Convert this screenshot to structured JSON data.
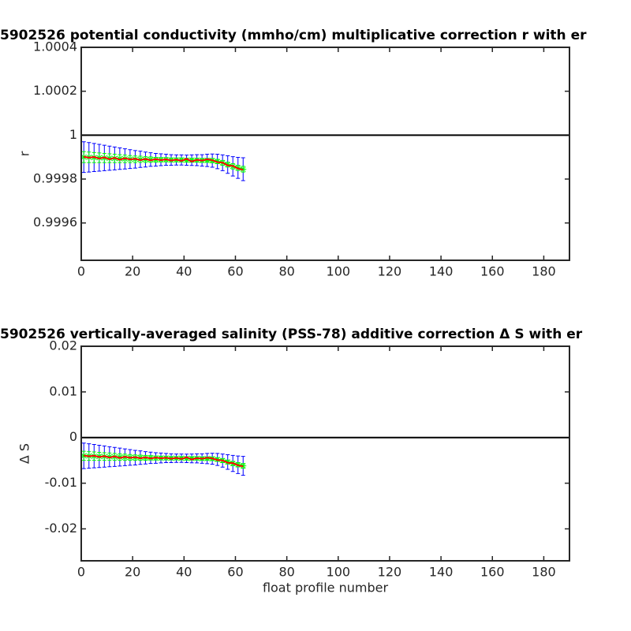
{
  "chart_data": [
    {
      "type": "errorbar",
      "title": "5902526 potential conductivity (mmho/cm) multiplicative correction r with er",
      "y_label": "r",
      "x": [
        1,
        3,
        5,
        7,
        9,
        11,
        13,
        15,
        17,
        19,
        21,
        23,
        25,
        27,
        29,
        31,
        33,
        35,
        37,
        39,
        41,
        43,
        45,
        47,
        49,
        51,
        53,
        55,
        57,
        59,
        61,
        63
      ],
      "series": [
        {
          "color": "#0000ff",
          "values": [
            0.9999,
            0.999899,
            0.999898,
            0.999897,
            0.999896,
            0.999895,
            0.999894,
            0.999893,
            0.999892,
            0.999891,
            0.99989,
            0.99989,
            0.999889,
            0.999889,
            0.999888,
            0.999888,
            0.999888,
            0.999887,
            0.999887,
            0.999887,
            0.999886,
            0.999886,
            0.999886,
            0.999885,
            0.999885,
            0.999884,
            0.99988,
            0.999874,
            0.999866,
            0.999858,
            0.999851,
            0.999845
          ],
          "errors": [
            7e-05,
            6.7e-05,
            6.4e-05,
            6.1e-05,
            5.8e-05,
            5.5e-05,
            5.2e-05,
            4.9e-05,
            4.6e-05,
            4.3e-05,
            4e-05,
            3.7e-05,
            3.4e-05,
            3.1e-05,
            2.9e-05,
            2.7e-05,
            2.5e-05,
            2.4e-05,
            2.3e-05,
            2.3e-05,
            2.3e-05,
            2.4e-05,
            2.5e-05,
            2.6e-05,
            2.8e-05,
            3e-05,
            3.3e-05,
            3.6e-05,
            4e-05,
            4.4e-05,
            4.8e-05,
            5.2e-05
          ]
        },
        {
          "color": "#00ff00",
          "values": [
            0.9999,
            0.999899,
            0.999898,
            0.999897,
            0.999896,
            0.999895,
            0.999894,
            0.999893,
            0.999892,
            0.999891,
            0.99989,
            0.99989,
            0.999889,
            0.999889,
            0.999888,
            0.999888,
            0.999888,
            0.999887,
            0.999887,
            0.999887,
            0.999886,
            0.999886,
            0.999886,
            0.999885,
            0.999885,
            0.999884,
            0.99988,
            0.999874,
            0.999866,
            0.999858,
            0.999851,
            0.999845
          ],
          "errors": [
            2.5e-05,
            2.4e-05,
            2.3e-05,
            2.2e-05,
            2.1e-05,
            2e-05,
            1.9e-05,
            1.8e-05,
            1.7e-05,
            1.6e-05,
            1.5e-05,
            1.4e-05,
            1.3e-05,
            1.2e-05,
            1.1e-05,
            1e-05,
            1e-05,
            9e-06,
            9e-06,
            9e-06,
            9e-06,
            9e-06,
            9e-06,
            9e-06,
            9e-06,
            1e-05,
            1e-05,
            1.1e-05,
            1.1e-05,
            1.2e-05,
            1.2e-05,
            1.3e-05
          ]
        },
        {
          "color": "#ff0000",
          "values": [
            0.999902,
            0.999897,
            0.999901,
            0.999893,
            0.999899,
            0.99989,
            0.999897,
            0.999888,
            0.999895,
            0.999889,
            0.999893,
            0.999886,
            0.999892,
            0.999885,
            0.999891,
            0.999886,
            0.99989,
            0.999884,
            0.999889,
            0.999883,
            0.999892,
            0.99988,
            0.999888,
            0.999884,
            0.99989,
            0.999886,
            0.999877,
            0.999875,
            0.999862,
            0.99986,
            0.999848,
            0.999842
          ]
        }
      ],
      "reference_line": 1,
      "xlim": [
        0,
        190
      ],
      "xticks": [
        0,
        20,
        40,
        60,
        80,
        100,
        120,
        140,
        160,
        180
      ],
      "ylim": [
        0.99943,
        1.0004
      ],
      "yticks": [
        0.9996,
        0.9998,
        1,
        1.0002,
        1.0004
      ]
    },
    {
      "type": "errorbar",
      "title": "5902526 vertically-averaged salinity (PSS-78) additive correction Δ S with er",
      "y_label": "Δ S",
      "x_label": "float profile number",
      "x": [
        1,
        3,
        5,
        7,
        9,
        11,
        13,
        15,
        17,
        19,
        21,
        23,
        25,
        27,
        29,
        31,
        33,
        35,
        37,
        39,
        41,
        43,
        45,
        47,
        49,
        51,
        53,
        55,
        57,
        59,
        61,
        63
      ],
      "series": [
        {
          "color": "#0000ff",
          "values": [
            -0.004,
            -0.00404,
            -0.00408,
            -0.00412,
            -0.00416,
            -0.0042,
            -0.00424,
            -0.00428,
            -0.00432,
            -0.00436,
            -0.0044,
            -0.0044,
            -0.00444,
            -0.00444,
            -0.00448,
            -0.00448,
            -0.00448,
            -0.00452,
            -0.00452,
            -0.00452,
            -0.00456,
            -0.00456,
            -0.00456,
            -0.0046,
            -0.0046,
            -0.00464,
            -0.0048,
            -0.00504,
            -0.00536,
            -0.00568,
            -0.00596,
            -0.0062
          ],
          "errors": [
            0.0028,
            0.00268,
            0.00256,
            0.00244,
            0.00232,
            0.0022,
            0.00208,
            0.00196,
            0.00184,
            0.00172,
            0.0016,
            0.00148,
            0.00136,
            0.00124,
            0.00116,
            0.00108,
            0.001,
            0.00096,
            0.00092,
            0.00092,
            0.00092,
            0.00096,
            0.001,
            0.00104,
            0.00112,
            0.0012,
            0.00132,
            0.00144,
            0.0016,
            0.00176,
            0.00192,
            0.00208
          ]
        },
        {
          "color": "#00ff00",
          "values": [
            -0.004,
            -0.00404,
            -0.00408,
            -0.00412,
            -0.00416,
            -0.0042,
            -0.00424,
            -0.00428,
            -0.00432,
            -0.00436,
            -0.0044,
            -0.0044,
            -0.00444,
            -0.00444,
            -0.00448,
            -0.00448,
            -0.00448,
            -0.00452,
            -0.00452,
            -0.00452,
            -0.00456,
            -0.00456,
            -0.00456,
            -0.0046,
            -0.0046,
            -0.00464,
            -0.0048,
            -0.00504,
            -0.00536,
            -0.00568,
            -0.00596,
            -0.0062
          ],
          "errors": [
            0.001,
            0.00096,
            0.00092,
            0.00088,
            0.00084,
            0.0008,
            0.00076,
            0.00072,
            0.00068,
            0.00064,
            0.0006,
            0.00056,
            0.00052,
            0.00048,
            0.00044,
            0.0004,
            0.0004,
            0.00036,
            0.00036,
            0.00036,
            0.00036,
            0.00036,
            0.00036,
            0.00036,
            0.00036,
            0.0004,
            0.0004,
            0.00044,
            0.00044,
            0.00048,
            0.00048,
            0.00052
          ]
        },
        {
          "color": "#ff0000",
          "values": [
            -0.00392,
            -0.00412,
            -0.00396,
            -0.00428,
            -0.00404,
            -0.0044,
            -0.00412,
            -0.00448,
            -0.0042,
            -0.00444,
            -0.00428,
            -0.00456,
            -0.00432,
            -0.0046,
            -0.00436,
            -0.00456,
            -0.0044,
            -0.00464,
            -0.00444,
            -0.00468,
            -0.00432,
            -0.0048,
            -0.00448,
            -0.00464,
            -0.0044,
            -0.00456,
            -0.00492,
            -0.005,
            -0.00552,
            -0.0056,
            -0.00608,
            -0.00632
          ]
        }
      ],
      "reference_line": 0,
      "xlim": [
        0,
        190
      ],
      "xticks": [
        0,
        20,
        40,
        60,
        80,
        100,
        120,
        140,
        160,
        180
      ],
      "ylim": [
        -0.027,
        0.02
      ],
      "yticks": [
        -0.02,
        -0.01,
        0,
        0.01,
        0.02
      ]
    }
  ]
}
